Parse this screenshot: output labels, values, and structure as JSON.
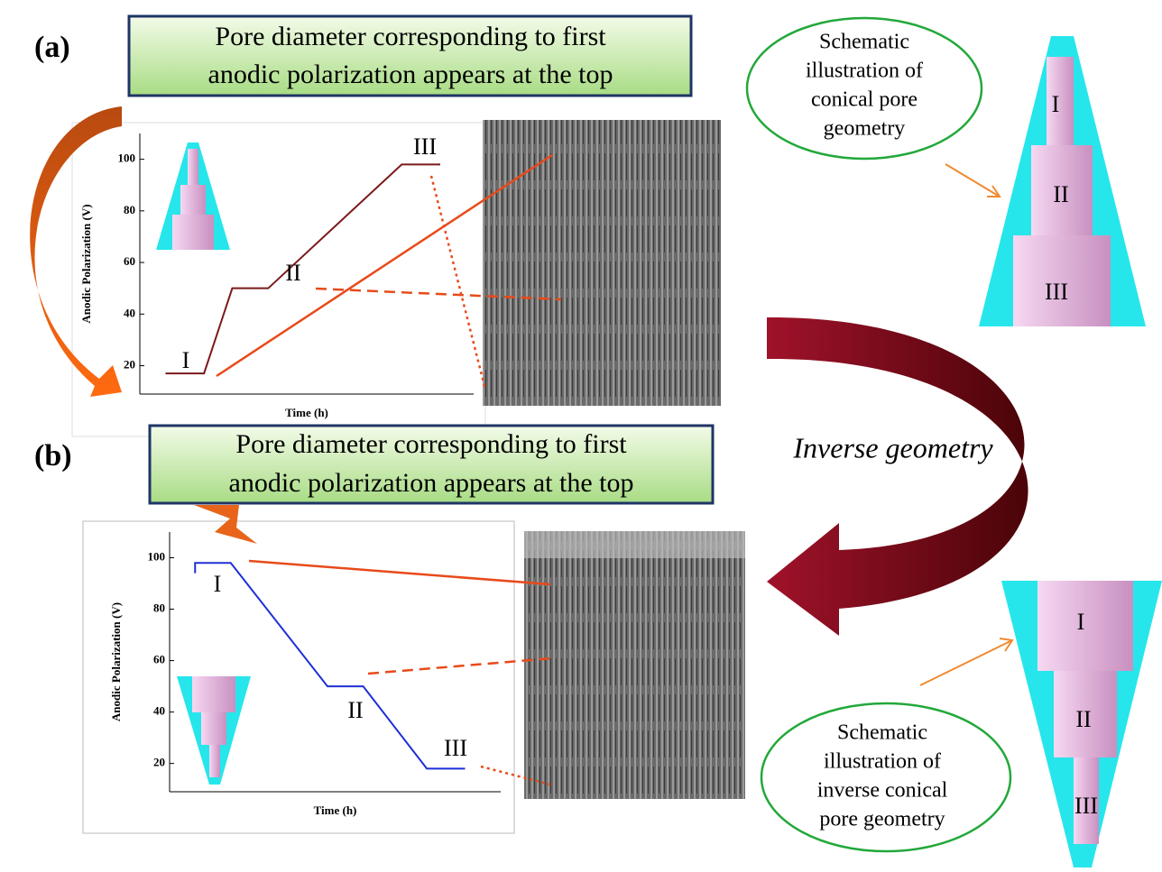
{
  "panel_labels": [
    "(a)",
    "(b)"
  ],
  "callouts": [
    [
      "Pore diameter corresponding to first",
      "anodic polarization appears at the top"
    ],
    [
      "Pore diameter corresponding to first",
      "anodic polarization appears at the top"
    ]
  ],
  "clouds": [
    [
      "Schematic",
      "illustration of",
      "conical pore",
      "geometry"
    ],
    [
      "Schematic",
      "illustration of",
      "inverse conical",
      "pore geometry"
    ]
  ],
  "inverse_label": "Inverse geometry",
  "schematic_a": [
    "I",
    "II",
    "III"
  ],
  "schematic_b": [
    "I",
    "II",
    "III"
  ],
  "chart_data": [
    {
      "type": "line",
      "x_label": "Time (h)",
      "y_label": "Anodic Polarization (V)",
      "xlim": [
        -0.5,
        6
      ],
      "ylim": [
        9,
        110
      ],
      "yticks": [
        20,
        40,
        60,
        80,
        100
      ],
      "x": [
        0,
        0.75,
        1.3,
        2,
        4.6,
        5.35
      ],
      "series": [
        {
          "color": "#7b1a1a",
          "values": [
            17,
            17,
            50,
            50,
            98,
            98
          ]
        }
      ],
      "annotations": [
        "I",
        "II",
        "III"
      ]
    },
    {
      "type": "line",
      "x_label": "Time (h)",
      "y_label": "Anodic Polarization (V)",
      "xlim": [
        -0.5,
        6
      ],
      "ylim": [
        9,
        110
      ],
      "yticks": [
        20,
        40,
        60,
        80,
        100
      ],
      "x": [
        0,
        0,
        0.7,
        2.6,
        3.3,
        4.55,
        5.3
      ],
      "series": [
        {
          "color": "#1f2fd6",
          "values": [
            94,
            98,
            98,
            50,
            50,
            18,
            18
          ]
        }
      ],
      "annotations": [
        "I",
        "II",
        "III"
      ]
    }
  ]
}
